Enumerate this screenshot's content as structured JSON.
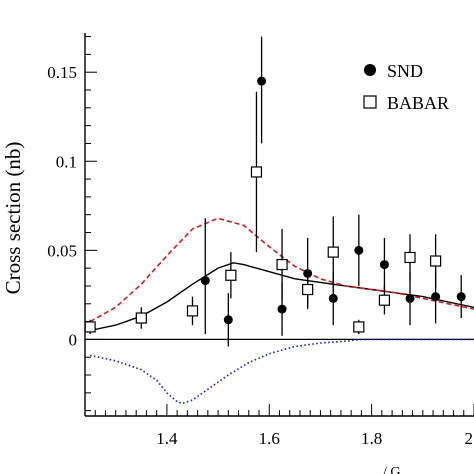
{
  "chart_data": {
    "type": "scatter",
    "ylabel": "Cross section (nb)",
    "xlabel_fragment": "/ G",
    "xlim": [
      1.24,
      2.0
    ],
    "ylim": [
      -0.043,
      0.172
    ],
    "x_ticks": [
      {
        "value": 1.4,
        "label": "1.4"
      },
      {
        "value": 1.6,
        "label": "1.6"
      },
      {
        "value": 1.8,
        "label": "1.8"
      },
      {
        "value": 2.0,
        "label": "2"
      }
    ],
    "y_ticks": [
      {
        "value": 0,
        "label": "0"
      },
      {
        "value": 0.05,
        "label": "0.05"
      },
      {
        "value": 0.1,
        "label": "0.1"
      },
      {
        "value": 0.15,
        "label": "0.15"
      }
    ],
    "legend": [
      {
        "label": "SND",
        "marker": "filled-circle"
      },
      {
        "label": "BABAR",
        "marker": "open-square"
      }
    ],
    "series": [
      {
        "name": "SND",
        "marker": "filled-circle",
        "points": [
          {
            "x": 1.475,
            "y": 0.033,
            "yerr": [
              0.03,
              0.035
            ]
          },
          {
            "x": 1.52,
            "y": 0.011,
            "yerr": [
              0.015,
              0.015
            ]
          },
          {
            "x": 1.585,
            "y": 0.145,
            "yerr": [
              0.035,
              0.025
            ]
          },
          {
            "x": 1.625,
            "y": 0.017,
            "yerr": [
              0.015,
              0.015
            ]
          },
          {
            "x": 1.675,
            "y": 0.037,
            "yerr": [
              0.02,
              0.02
            ]
          },
          {
            "x": 1.725,
            "y": 0.023,
            "yerr": [
              0.015,
              0.015
            ]
          },
          {
            "x": 1.775,
            "y": 0.05,
            "yerr": [
              0.02,
              0.02
            ]
          },
          {
            "x": 1.825,
            "y": 0.042,
            "yerr": [
              0.015,
              0.015
            ]
          },
          {
            "x": 1.875,
            "y": 0.023,
            "yerr": [
              0.015,
              0.015
            ]
          },
          {
            "x": 1.925,
            "y": 0.024,
            "yerr": [
              0.015,
              0.015
            ]
          },
          {
            "x": 1.975,
            "y": 0.024,
            "yerr": [
              0.012,
              0.012
            ]
          }
        ]
      },
      {
        "name": "BABAR",
        "marker": "open-square",
        "points": [
          {
            "x": 1.25,
            "y": 0.007,
            "yerr": [
              0.004,
              0.004
            ]
          },
          {
            "x": 1.35,
            "y": 0.012,
            "yerr": [
              0.006,
              0.006
            ]
          },
          {
            "x": 1.45,
            "y": 0.016,
            "yerr": [
              0.008,
              0.008
            ]
          },
          {
            "x": 1.525,
            "y": 0.036,
            "yerr": [
              0.013,
              0.013
            ]
          },
          {
            "x": 1.575,
            "y": 0.094,
            "yerr": [
              0.045,
              0.045
            ]
          },
          {
            "x": 1.625,
            "y": 0.042,
            "yerr": [
              0.02,
              0.02
            ]
          },
          {
            "x": 1.675,
            "y": 0.028,
            "yerr": [
              0.01,
              0.01
            ]
          },
          {
            "x": 1.725,
            "y": 0.049,
            "yerr": [
              0.02,
              0.02
            ]
          },
          {
            "x": 1.775,
            "y": 0.007,
            "yerr": [
              0.004,
              0.004
            ]
          },
          {
            "x": 1.825,
            "y": 0.022,
            "yerr": [
              0.008,
              0.008
            ]
          },
          {
            "x": 1.875,
            "y": 0.046,
            "yerr": [
              0.013,
              0.013
            ]
          },
          {
            "x": 1.925,
            "y": 0.044,
            "yerr": [
              0.015,
              0.015
            ]
          }
        ]
      }
    ],
    "curves": [
      {
        "style": "solid",
        "color": "#000000",
        "x": [
          1.25,
          1.3,
          1.35,
          1.4,
          1.45,
          1.5,
          1.53,
          1.55,
          1.6,
          1.65,
          1.7,
          1.75,
          1.8,
          1.85,
          1.9,
          1.95,
          2.0
        ],
        "y": [
          0.005,
          0.008,
          0.013,
          0.021,
          0.031,
          0.04,
          0.043,
          0.042,
          0.038,
          0.034,
          0.032,
          0.03,
          0.028,
          0.026,
          0.024,
          0.021,
          0.018
        ]
      },
      {
        "style": "dashed",
        "color": "#cc2222",
        "x": [
          1.25,
          1.3,
          1.35,
          1.4,
          1.45,
          1.5,
          1.55,
          1.6,
          1.65,
          1.7,
          1.75,
          1.8,
          1.85,
          1.9,
          1.95,
          2.0
        ],
        "y": [
          0.01,
          0.018,
          0.031,
          0.047,
          0.062,
          0.068,
          0.064,
          0.052,
          0.041,
          0.034,
          0.03,
          0.028,
          0.026,
          0.023,
          0.02,
          0.017
        ]
      },
      {
        "style": "dotted",
        "color": "#1c1caa",
        "x": [
          1.25,
          1.3,
          1.35,
          1.38,
          1.4,
          1.42,
          1.43,
          1.45,
          1.48,
          1.52,
          1.56,
          1.6,
          1.65,
          1.7,
          1.75,
          1.78,
          1.8,
          2.0
        ],
        "y": [
          -0.009,
          -0.012,
          -0.017,
          -0.023,
          -0.03,
          -0.035,
          -0.036,
          -0.034,
          -0.028,
          -0.02,
          -0.013,
          -0.008,
          -0.004,
          -0.002,
          -0.001,
          0.0,
          0.0,
          0.0
        ]
      }
    ]
  }
}
